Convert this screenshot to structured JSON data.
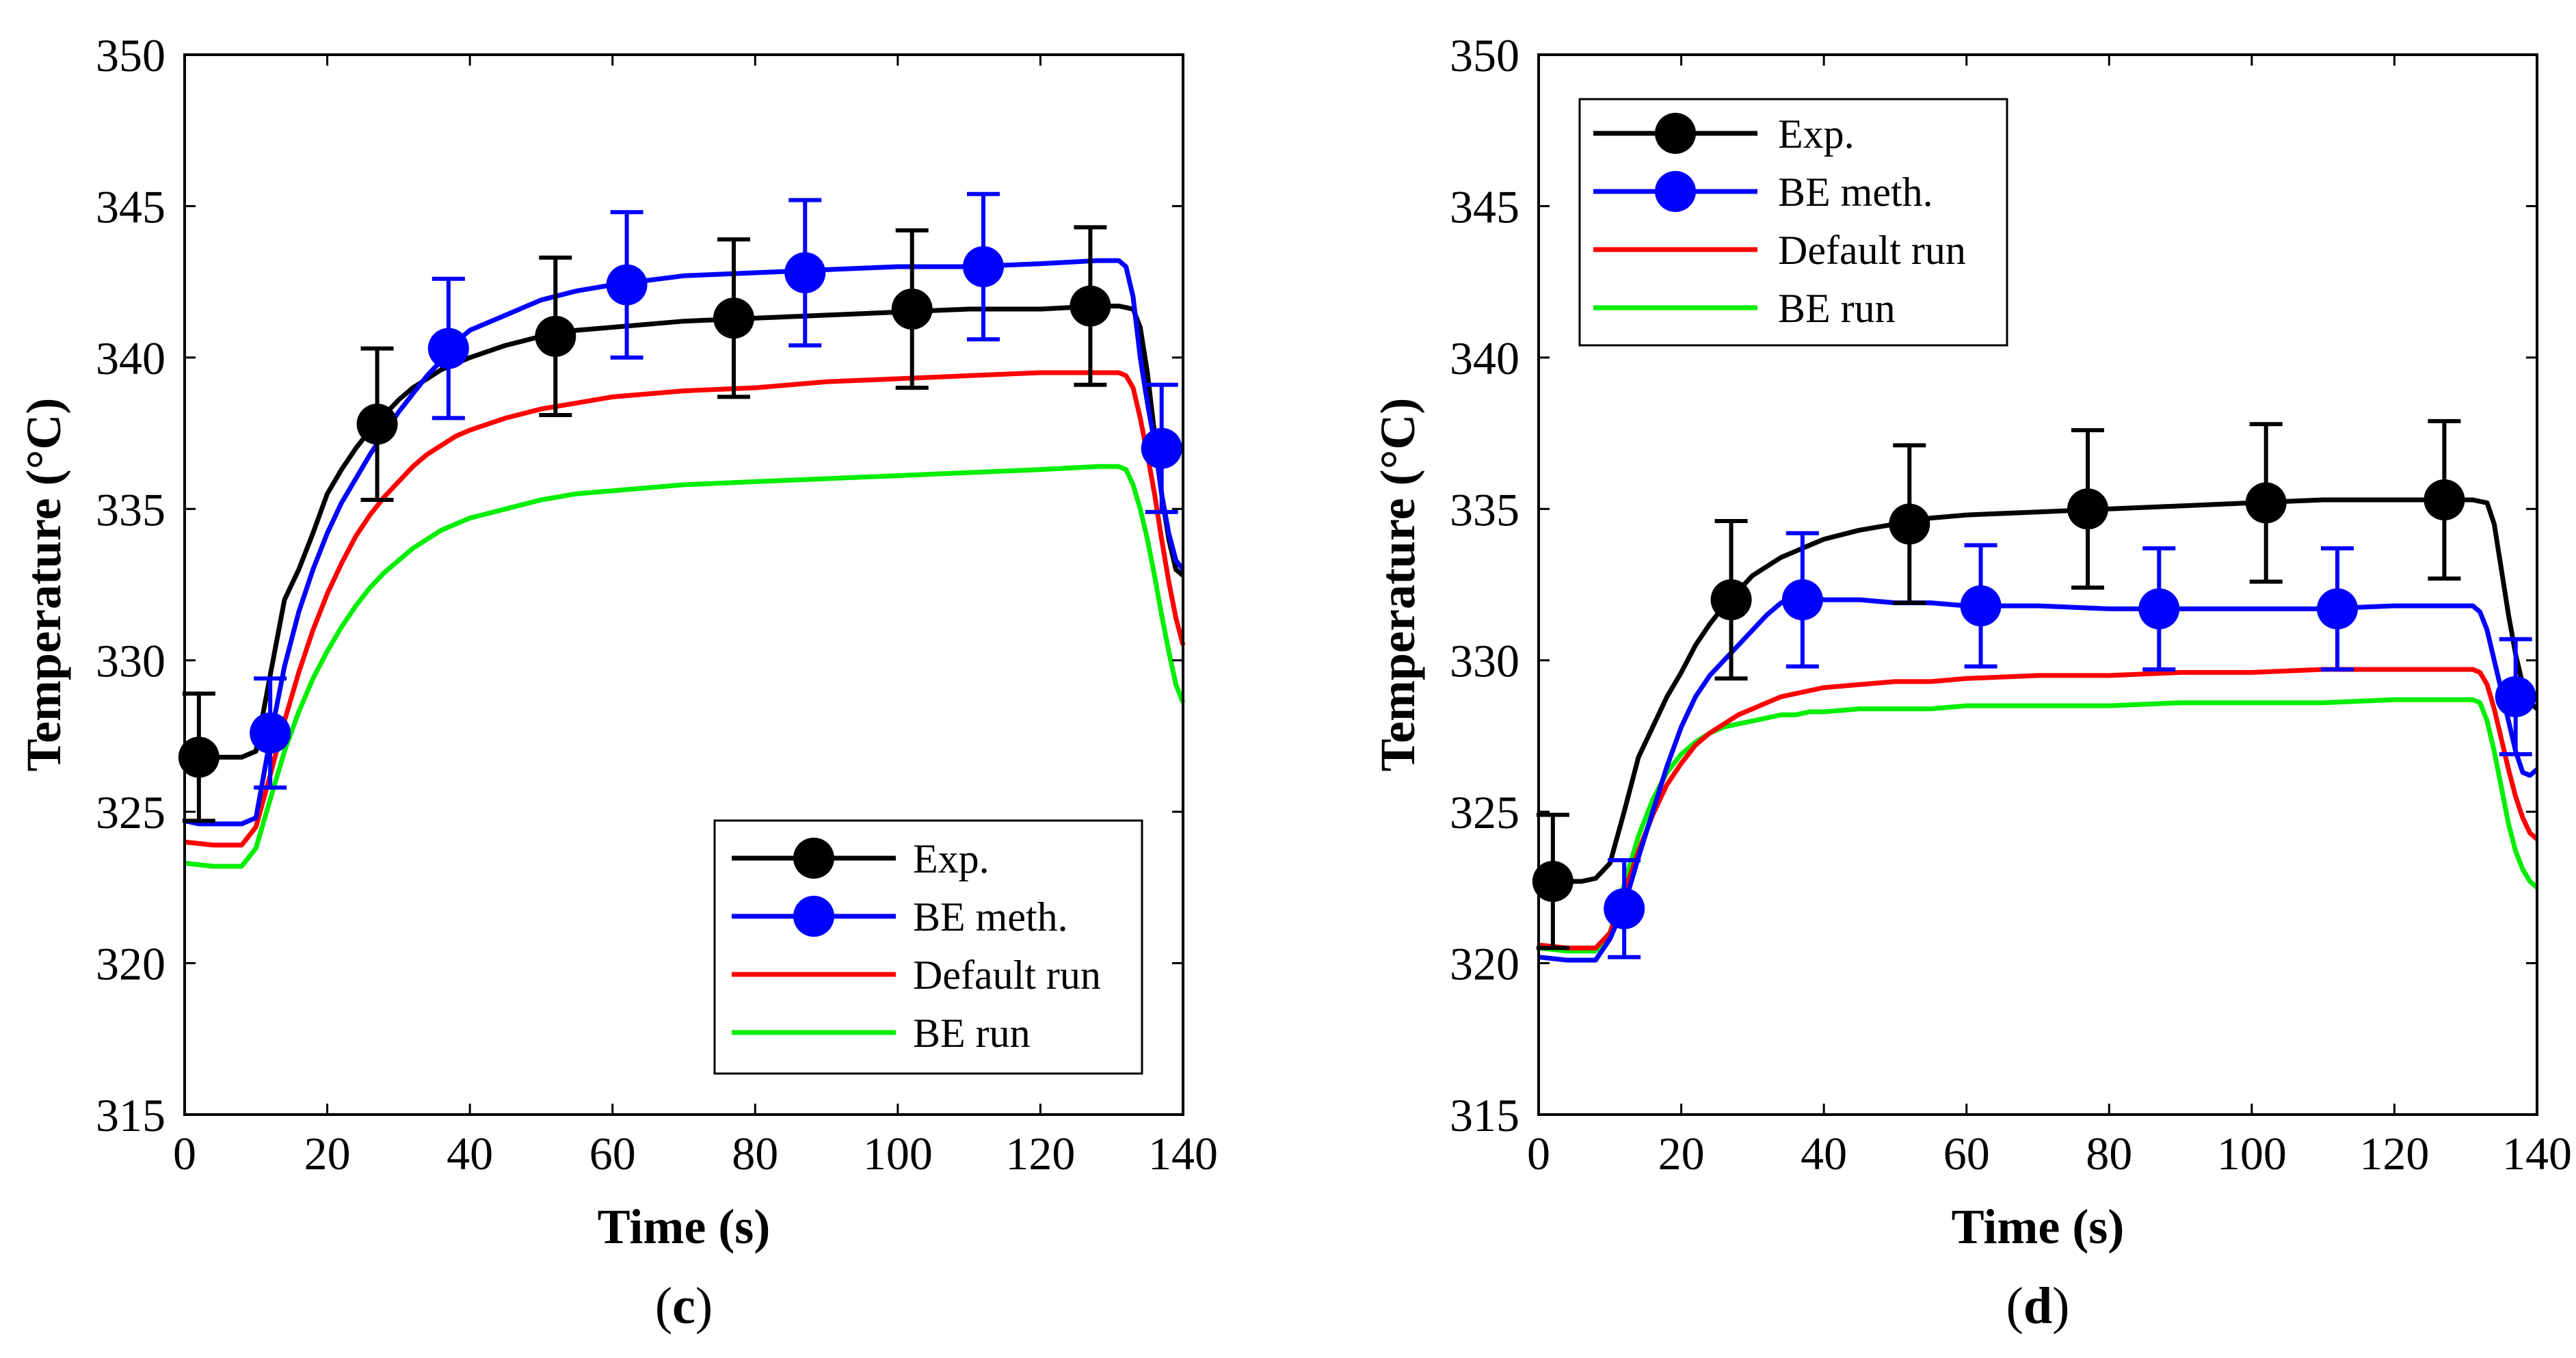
{
  "chart_data": [
    {
      "type": "line",
      "panel_label": "c",
      "caption_open": "(",
      "caption_close": ")",
      "xlabel": "Time (s)",
      "ylabel": "Temperature (°C)",
      "xlim": [
        0,
        140
      ],
      "ylim": [
        315,
        350
      ],
      "xticks": [
        0,
        20,
        40,
        60,
        80,
        100,
        120,
        140
      ],
      "yticks": [
        315,
        320,
        325,
        330,
        335,
        340,
        345,
        350
      ],
      "legend_position": "bottom-right",
      "series": [
        {
          "name": "Exp.",
          "color": "#000000",
          "style": "line-marker",
          "x": [
            0,
            2,
            4,
            6,
            8,
            10,
            12,
            14,
            16,
            18,
            20,
            22,
            24,
            26,
            28,
            30,
            32,
            34,
            36,
            38,
            40,
            45,
            50,
            55,
            60,
            70,
            80,
            90,
            100,
            110,
            120,
            128,
            131,
            133,
            134,
            135,
            136,
            137,
            138,
            139,
            140
          ],
          "y": [
            326.9,
            326.8,
            326.8,
            326.8,
            326.8,
            327.0,
            329.5,
            332.0,
            333.0,
            334.2,
            335.5,
            336.3,
            337.0,
            337.6,
            338.1,
            338.6,
            339.0,
            339.3,
            339.6,
            339.8,
            340.0,
            340.4,
            340.7,
            340.9,
            341.0,
            341.2,
            341.3,
            341.4,
            341.5,
            341.6,
            341.6,
            341.7,
            341.7,
            341.6,
            341.0,
            339.5,
            337.5,
            335.5,
            334.0,
            333.0,
            332.8
          ],
          "markers": [
            {
              "x": 2,
              "y": 326.8,
              "err": 2.1
            },
            {
              "x": 27,
              "y": 337.8,
              "err": 2.5
            },
            {
              "x": 52,
              "y": 340.7,
              "err": 2.6
            },
            {
              "x": 77,
              "y": 341.3,
              "err": 2.6
            },
            {
              "x": 102,
              "y": 341.6,
              "err": 2.6
            },
            {
              "x": 127,
              "y": 341.7,
              "err": 2.6
            }
          ]
        },
        {
          "name": "BE meth.",
          "color": "#0000ff",
          "style": "line-marker",
          "x": [
            0,
            2,
            4,
            6,
            8,
            10,
            12,
            14,
            16,
            18,
            20,
            22,
            24,
            26,
            28,
            30,
            32,
            34,
            36,
            38,
            40,
            45,
            50,
            55,
            60,
            70,
            80,
            90,
            100,
            110,
            120,
            128,
            131,
            132,
            133,
            134,
            135,
            136,
            137,
            138,
            139,
            140
          ],
          "y": [
            324.7,
            324.6,
            324.6,
            324.6,
            324.6,
            324.8,
            327.4,
            329.8,
            331.6,
            333.0,
            334.2,
            335.2,
            336.0,
            336.8,
            337.5,
            338.2,
            338.8,
            339.4,
            339.9,
            340.5,
            340.9,
            341.4,
            341.9,
            342.2,
            342.4,
            342.7,
            342.8,
            342.9,
            343.0,
            343.0,
            343.1,
            343.2,
            343.2,
            343.0,
            342.0,
            340.0,
            338.5,
            337.2,
            335.5,
            334.2,
            333.3,
            333.0
          ],
          "markers": [
            {
              "x": 12,
              "y": 327.6,
              "err": 1.8
            },
            {
              "x": 37,
              "y": 340.3,
              "err": 2.3
            },
            {
              "x": 62,
              "y": 342.4,
              "err": 2.4
            },
            {
              "x": 87,
              "y": 342.8,
              "err": 2.4
            },
            {
              "x": 112,
              "y": 343.0,
              "err": 2.4
            },
            {
              "x": 137,
              "y": 337.0,
              "err": 2.1
            }
          ]
        },
        {
          "name": "Default run",
          "color": "#ff0000",
          "style": "line",
          "x": [
            0,
            4,
            8,
            10,
            12,
            14,
            16,
            18,
            20,
            22,
            24,
            26,
            28,
            30,
            32,
            34,
            36,
            38,
            40,
            45,
            50,
            55,
            60,
            70,
            80,
            90,
            100,
            110,
            120,
            128,
            131,
            132,
            133,
            134,
            135,
            136,
            137,
            138,
            139,
            140
          ],
          "y": [
            324.0,
            323.9,
            323.9,
            324.5,
            326.2,
            328.0,
            329.6,
            331.0,
            332.2,
            333.2,
            334.1,
            334.8,
            335.4,
            335.9,
            336.4,
            336.8,
            337.1,
            337.4,
            337.6,
            338.0,
            338.3,
            338.5,
            338.7,
            338.9,
            339.0,
            339.2,
            339.3,
            339.4,
            339.5,
            339.5,
            339.5,
            339.4,
            339.0,
            338.0,
            336.8,
            335.5,
            334.0,
            332.6,
            331.4,
            330.5
          ]
        },
        {
          "name": "BE run",
          "color": "#00ee00",
          "style": "line",
          "x": [
            0,
            4,
            8,
            10,
            12,
            14,
            16,
            18,
            20,
            22,
            24,
            26,
            28,
            30,
            32,
            34,
            36,
            38,
            40,
            45,
            50,
            55,
            60,
            70,
            80,
            90,
            100,
            110,
            120,
            128,
            131,
            132,
            133,
            134,
            135,
            136,
            137,
            138,
            139,
            140
          ],
          "y": [
            323.3,
            323.2,
            323.2,
            323.8,
            325.4,
            327.0,
            328.3,
            329.4,
            330.3,
            331.1,
            331.8,
            332.4,
            332.9,
            333.3,
            333.7,
            334.0,
            334.3,
            334.5,
            334.7,
            335.0,
            335.3,
            335.5,
            335.6,
            335.8,
            335.9,
            336.0,
            336.1,
            336.2,
            336.3,
            336.4,
            336.4,
            336.3,
            335.8,
            335.0,
            334.0,
            332.8,
            331.5,
            330.3,
            329.2,
            328.6
          ]
        }
      ]
    },
    {
      "type": "line",
      "panel_label": "d",
      "caption_open": "(",
      "caption_close": ")",
      "xlabel": "Time (s)",
      "ylabel": "Temperature (°C)",
      "xlim": [
        0,
        140
      ],
      "ylim": [
        315,
        350
      ],
      "xticks": [
        0,
        20,
        40,
        60,
        80,
        100,
        120,
        140
      ],
      "yticks": [
        315,
        320,
        325,
        330,
        335,
        340,
        345,
        350
      ],
      "legend_position": "top-left",
      "series": [
        {
          "name": "Exp.",
          "color": "#000000",
          "style": "line-marker",
          "x": [
            0,
            2,
            4,
            6,
            8,
            10,
            12,
            14,
            16,
            18,
            20,
            22,
            24,
            26,
            28,
            30,
            32,
            34,
            36,
            38,
            40,
            45,
            50,
            55,
            60,
            70,
            80,
            90,
            100,
            110,
            120,
            128,
            131,
            133,
            134,
            135,
            136,
            137,
            138,
            139,
            140
          ],
          "y": [
            322.8,
            322.7,
            322.7,
            322.7,
            322.8,
            323.3,
            325.0,
            326.8,
            327.8,
            328.8,
            329.6,
            330.5,
            331.2,
            331.8,
            332.3,
            332.8,
            333.1,
            333.4,
            333.6,
            333.8,
            334.0,
            334.3,
            334.5,
            334.7,
            334.8,
            334.9,
            335.0,
            335.1,
            335.2,
            335.3,
            335.3,
            335.3,
            335.3,
            335.2,
            334.5,
            333.0,
            331.5,
            330.2,
            329.2,
            328.6,
            328.4
          ],
          "markers": [
            {
              "x": 2,
              "y": 322.7,
              "err": 2.2
            },
            {
              "x": 27,
              "y": 332.0,
              "err": 2.6
            },
            {
              "x": 52,
              "y": 334.5,
              "err": 2.6
            },
            {
              "x": 77,
              "y": 335.0,
              "err": 2.6
            },
            {
              "x": 102,
              "y": 335.2,
              "err": 2.6
            },
            {
              "x": 127,
              "y": 335.3,
              "err": 2.6
            }
          ]
        },
        {
          "name": "BE meth.",
          "color": "#0000ff",
          "style": "line-marker",
          "x": [
            0,
            4,
            8,
            10,
            12,
            14,
            16,
            18,
            20,
            22,
            24,
            26,
            28,
            30,
            32,
            34,
            36,
            38,
            40,
            45,
            50,
            55,
            60,
            70,
            80,
            90,
            100,
            110,
            120,
            128,
            131,
            132,
            133,
            134,
            135,
            136,
            137,
            138,
            139,
            140
          ],
          "y": [
            320.2,
            320.1,
            320.1,
            320.8,
            321.9,
            323.5,
            325.0,
            326.5,
            327.8,
            328.8,
            329.5,
            330.0,
            330.5,
            331.0,
            331.5,
            331.9,
            332.1,
            332.1,
            332.0,
            332.0,
            331.9,
            331.9,
            331.8,
            331.8,
            331.7,
            331.7,
            331.7,
            331.7,
            331.8,
            331.8,
            331.8,
            331.6,
            331.0,
            330.0,
            329.0,
            328.0,
            327.0,
            326.3,
            326.2,
            326.4
          ],
          "markers": [
            {
              "x": 12,
              "y": 321.8,
              "err": 1.6
            },
            {
              "x": 37,
              "y": 332.0,
              "err": 2.2
            },
            {
              "x": 62,
              "y": 331.8,
              "err": 2.0
            },
            {
              "x": 87,
              "y": 331.7,
              "err": 2.0
            },
            {
              "x": 112,
              "y": 331.7,
              "err": 2.0
            },
            {
              "x": 137,
              "y": 328.8,
              "err": 1.9
            }
          ]
        },
        {
          "name": "Default run",
          "color": "#ff0000",
          "style": "line",
          "x": [
            0,
            4,
            8,
            10,
            12,
            14,
            16,
            18,
            20,
            22,
            24,
            26,
            28,
            30,
            32,
            34,
            36,
            38,
            40,
            45,
            50,
            55,
            60,
            70,
            80,
            90,
            100,
            110,
            120,
            128,
            131,
            132,
            133,
            134,
            135,
            136,
            137,
            138,
            139,
            140
          ],
          "y": [
            320.6,
            320.5,
            320.5,
            321.0,
            322.3,
            323.7,
            324.9,
            325.9,
            326.6,
            327.2,
            327.6,
            327.9,
            328.2,
            328.4,
            328.6,
            328.8,
            328.9,
            329.0,
            329.1,
            329.2,
            329.3,
            329.3,
            329.4,
            329.5,
            329.5,
            329.6,
            329.6,
            329.7,
            329.7,
            329.7,
            329.7,
            329.6,
            329.2,
            328.4,
            327.4,
            326.4,
            325.5,
            324.8,
            324.3,
            324.1
          ]
        },
        {
          "name": "BE run",
          "color": "#00ee00",
          "style": "line",
          "x": [
            0,
            4,
            8,
            10,
            12,
            14,
            16,
            18,
            20,
            22,
            24,
            26,
            28,
            30,
            32,
            34,
            36,
            38,
            40,
            45,
            50,
            55,
            60,
            70,
            80,
            90,
            100,
            110,
            120,
            128,
            131,
            132,
            133,
            134,
            135,
            136,
            137,
            138,
            139,
            140
          ],
          "y": [
            320.5,
            320.4,
            320.4,
            321.0,
            322.6,
            324.2,
            325.4,
            326.3,
            326.9,
            327.3,
            327.6,
            327.8,
            327.9,
            328.0,
            328.1,
            328.2,
            328.2,
            328.3,
            328.3,
            328.4,
            328.4,
            328.4,
            328.5,
            328.5,
            328.5,
            328.6,
            328.6,
            328.6,
            328.7,
            328.7,
            328.7,
            328.6,
            328.0,
            327.0,
            325.8,
            324.6,
            323.7,
            323.1,
            322.7,
            322.5
          ]
        }
      ]
    }
  ]
}
